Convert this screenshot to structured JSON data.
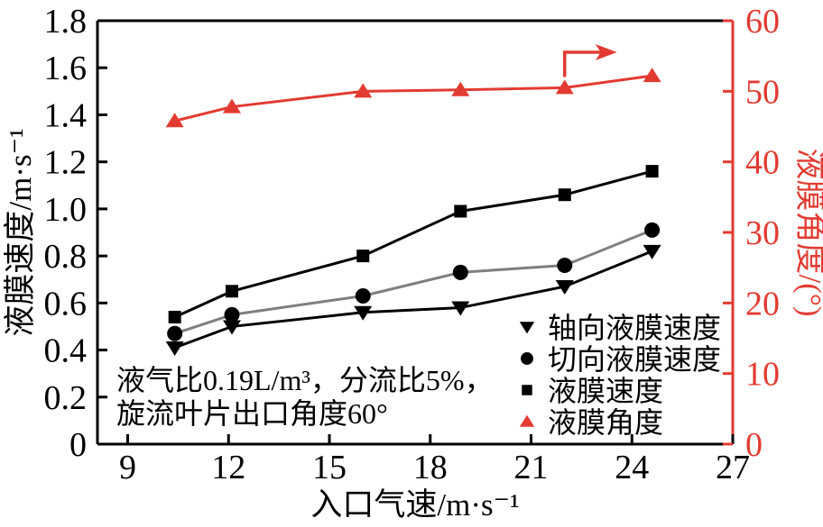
{
  "figure": {
    "background": "#ffffff",
    "black": "#000000",
    "accent_red": "#e23b31",
    "gray_line": "#7f7f7f"
  },
  "chart_data": {
    "type": "line",
    "title": "",
    "xlabel": "入口气速/m·s⁻¹",
    "ylabel_left": "液膜速度/m·s⁻¹",
    "ylabel_right": "液膜角度/(°)",
    "xlim": [
      8.1,
      27
    ],
    "ylim_left": [
      0,
      1.8
    ],
    "ylim_right": [
      0,
      60
    ],
    "x_ticks": [
      9,
      12,
      15,
      18,
      21,
      24,
      27
    ],
    "y_left_ticks": [
      0,
      0.2,
      0.4,
      0.6,
      0.8,
      1.0,
      1.2,
      1.4,
      1.6,
      1.8
    ],
    "y_right_ticks": [
      0,
      10,
      20,
      30,
      40,
      50,
      60
    ],
    "grid": false,
    "legend_position": "inside-bottom-right",
    "x": [
      10.4,
      12.1,
      16.0,
      18.9,
      22.0,
      24.6
    ],
    "series": [
      {
        "id": "axial-film-velocity",
        "name": "轴向液膜速度",
        "axis": "left",
        "marker": "triangle-down",
        "marker_color": "#000000",
        "line_color": "#000000",
        "values": [
          0.41,
          0.5,
          0.56,
          0.58,
          0.67,
          0.82
        ]
      },
      {
        "id": "tangential-film-velocity",
        "name": "切向液膜速度",
        "axis": "left",
        "marker": "circle",
        "marker_color": "#000000",
        "line_color": "#7f7f7f",
        "values": [
          0.47,
          0.55,
          0.63,
          0.73,
          0.76,
          0.91
        ]
      },
      {
        "id": "film-velocity",
        "name": "液膜速度",
        "axis": "left",
        "marker": "square",
        "marker_color": "#000000",
        "line_color": "#000000",
        "values": [
          0.54,
          0.65,
          0.8,
          0.99,
          1.06,
          1.16
        ]
      },
      {
        "id": "film-angle",
        "name": "液膜角度",
        "axis": "right",
        "marker": "triangle-up",
        "marker_color": "#e23b31",
        "line_color": "#e23b31",
        "values": [
          45.8,
          47.8,
          50.0,
          50.2,
          50.5,
          52.2
        ]
      }
    ],
    "annotation": {
      "line1": "液气比0.19L/m³，分流比5%，",
      "line2": "旋流叶片出口角度60°"
    },
    "right_axis_arrow": "elbow-right"
  }
}
